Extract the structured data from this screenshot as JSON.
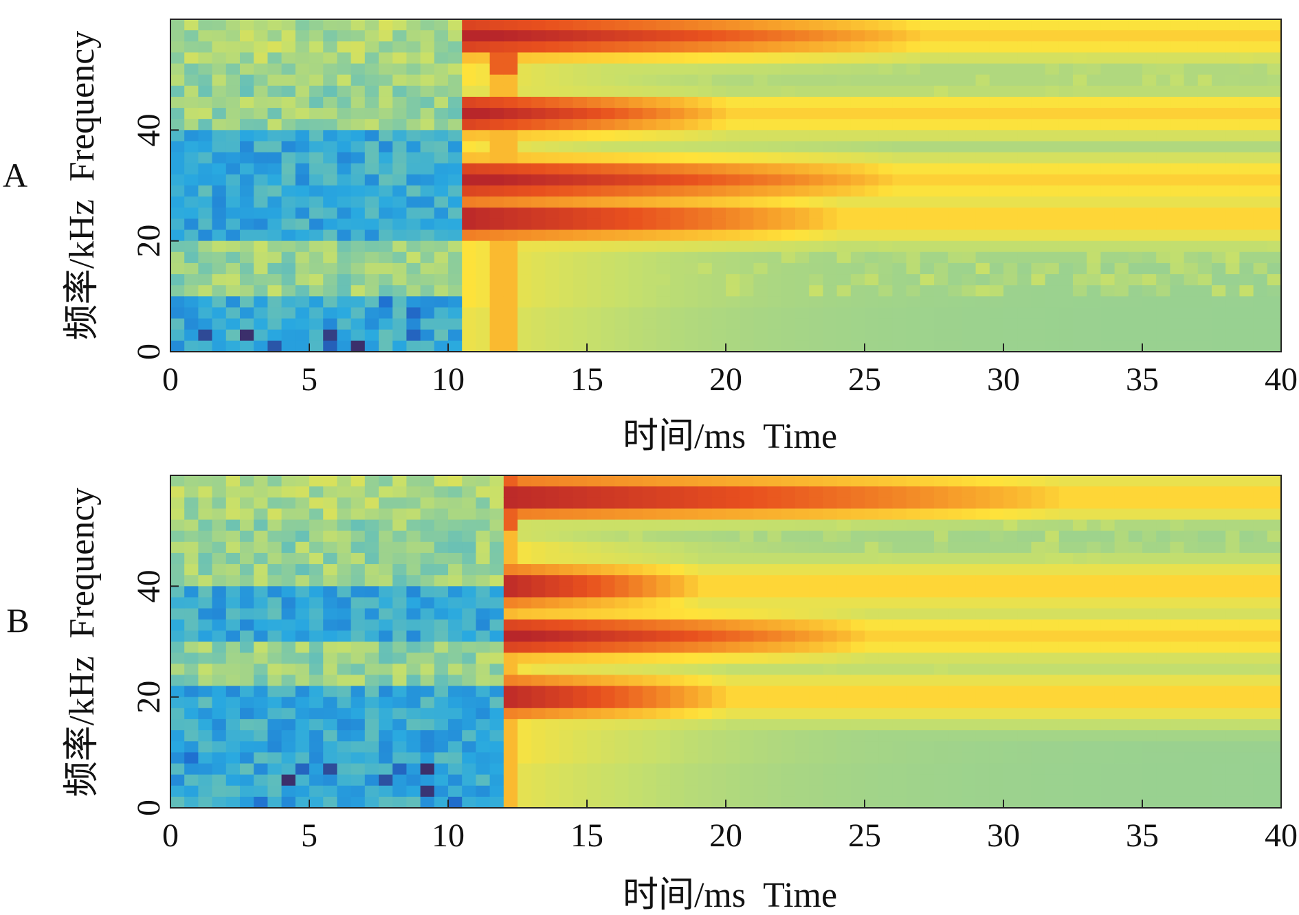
{
  "chart_data": [
    {
      "panel_label": "A",
      "type": "heatmap",
      "xlabel": "时间/ms  Time",
      "ylabel": "频率/kHz  Frequency",
      "xlim": [
        0,
        40
      ],
      "ylim": [
        0,
        60
      ],
      "xticks": [
        "0",
        "5",
        "10",
        "15",
        "20",
        "25",
        "30",
        "35",
        "40"
      ],
      "yticks": [
        "0",
        "20",
        "40"
      ],
      "colormap": [
        "#3b2f6b",
        "#1f6fd0",
        "#29a9e0",
        "#7cc8a8",
        "#c8e06a",
        "#ffe23a",
        "#f7a02a",
        "#e8501e",
        "#b8262a"
      ],
      "features": {
        "onset_ms": 10.5,
        "background_bands_khz": [
          [
            30,
            40,
            "blue"
          ],
          [
            20,
            30,
            "teal"
          ],
          [
            0,
            10,
            "blue speckles"
          ]
        ],
        "hot_bands_khz": [
          {
            "center": 57,
            "decays_by_ms": 27
          },
          {
            "center": 43,
            "decays_by_ms": 20
          },
          {
            "center": 31,
            "decays_by_ms": 26
          },
          {
            "center": 24,
            "decays_by_ms": 24
          }
        ],
        "vertical_streak_ms": [
          11.4,
          12.4
        ],
        "notch_khz": 47
      }
    },
    {
      "panel_label": "B",
      "type": "heatmap",
      "xlabel": "时间/ms  Time",
      "ylabel": "频率/kHz  Frequency",
      "xlim": [
        0,
        40
      ],
      "ylim": [
        0,
        60
      ],
      "xticks": [
        "0",
        "5",
        "10",
        "15",
        "20",
        "25",
        "30",
        "35",
        "40"
      ],
      "yticks": [
        "0",
        "20",
        "40"
      ],
      "colormap": [
        "#3b2f6b",
        "#1f6fd0",
        "#29a9e0",
        "#7cc8a8",
        "#c8e06a",
        "#ffe23a",
        "#f7a02a",
        "#e8501e",
        "#b8262a"
      ],
      "features": {
        "onset_ms": 11.8,
        "background_bands_khz": [
          [
            30,
            40,
            "blue"
          ],
          [
            0,
            22,
            "blue"
          ]
        ],
        "hot_bands_khz": [
          {
            "center": 56,
            "decays_by_ms": 32
          },
          {
            "center": 40,
            "decays_by_ms": 19
          },
          {
            "center": 31,
            "decays_by_ms": 25
          },
          {
            "center": 20,
            "decays_by_ms": 20
          }
        ],
        "vertical_streak_ms": [
          11.8,
          12.4
        ],
        "notch_khz": 50
      }
    }
  ]
}
